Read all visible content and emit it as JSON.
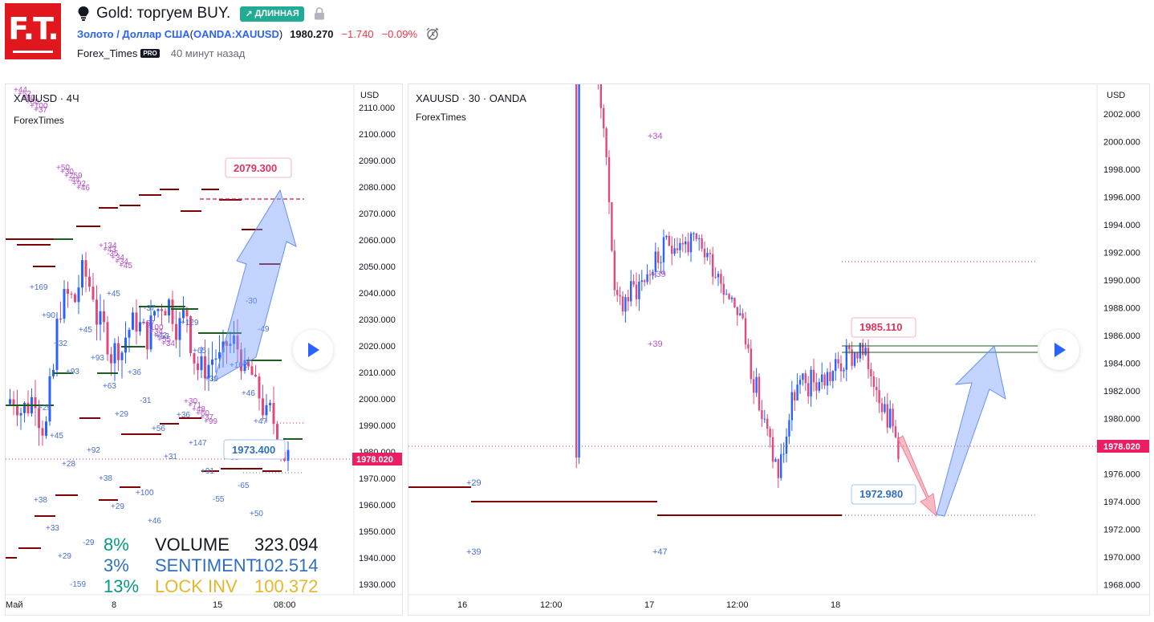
{
  "header": {
    "logo_text": "F.T.",
    "title": "Gold: торгуем BUY.",
    "direction_badge": "ДЛИННАЯ",
    "symbol_name": "Золото / Доллар США",
    "symbol_paren_open": " (",
    "symbol_code": "OANDA:XAUUSD",
    "symbol_paren_close": ")",
    "price": "1980.270",
    "change": "−1.740",
    "change_pct": "−0.09%",
    "author": "Forex_Times",
    "author_badge": "PRO",
    "time_ago": "40 минут назад"
  },
  "colors": {
    "up": "#2962ff",
    "down": "#e04a7f",
    "brand": "#e1171e",
    "badge_green": "#22ab94",
    "price_tag": "#e91e63",
    "level_dark": "#7f0000",
    "level_green": "#1b5e20",
    "plus_label": "#b450c8",
    "blue_label": "#4a6fd6",
    "volume_green": "#089981",
    "sentiment_blue": "#2f6fc0",
    "lock_yellow": "#e3b82c"
  },
  "left_chart": {
    "title": "XAUUSD · 4Ч",
    "subtitle": "ForexTimes",
    "currency": "USD",
    "price_ticks": [
      "2110.000",
      "2100.000",
      "2090.000",
      "2080.000",
      "2070.000",
      "2060.000",
      "2050.000",
      "2040.000",
      "2030.000",
      "2020.000",
      "2010.000",
      "2000.000",
      "1990.000",
      "1980.000",
      "1970.000",
      "1960.000",
      "1950.000",
      "1940.000",
      "1930.000"
    ],
    "time_ticks": [
      "Май",
      "8",
      "15",
      "08:00"
    ],
    "last_price": "1978.020",
    "target_label": "2079.300",
    "entry_label": "1973.400",
    "stats": [
      {
        "pct": "8%",
        "name": "VOLUME",
        "value": "323.094"
      },
      {
        "pct": "3%",
        "name": "SENTIMENT",
        "value": "102.514"
      },
      {
        "pct": "13%",
        "name": "LOCK INV",
        "value": "100.372"
      }
    ],
    "marks_pink": [
      "+44",
      "+50",
      "+134",
      "+57",
      "+30",
      "+52",
      "+30",
      "+43",
      "+100",
      "+71",
      "+60",
      "+259",
      "-35",
      "+34",
      "+48",
      "+80",
      "-44",
      "+34",
      "+42",
      "+60",
      "+100",
      "+92",
      "+34",
      "+55",
      "+37",
      "+37",
      "+46",
      "+45",
      "+34",
      "+99"
    ],
    "marks_blue": [
      "+169",
      "+45",
      "+36",
      "+36",
      "+35",
      "+38",
      "-29",
      "+41",
      "+129",
      "+102",
      "+29",
      "+92",
      "+100",
      "+31",
      "+29",
      "+90",
      "+93",
      "-31",
      "+147",
      "-65",
      "+33",
      "+131",
      "-37",
      "+65",
      "+46",
      "+45",
      "+38",
      "+46",
      "+91",
      "-30",
      "+32",
      "+63",
      "+56",
      "+91",
      "+50",
      "+29",
      "+45",
      "+53",
      "+39",
      "+47",
      "+28",
      "+29",
      "+50",
      "+51",
      "-49",
      "+93",
      "+29",
      "+31",
      "-55",
      "+29",
      "-159"
    ]
  },
  "right_chart": {
    "title": "XAUUSD · 30 · OANDA",
    "subtitle": "ForexTimes",
    "currency": "USD",
    "price_ticks": [
      "2002.000",
      "2000.000",
      "1998.000",
      "1996.000",
      "1994.000",
      "1992.000",
      "1990.000",
      "1988.000",
      "1986.000",
      "1984.000",
      "1982.000",
      "1980.000",
      "1978.000",
      "1976.000",
      "1974.000",
      "1972.000",
      "1970.000",
      "1968.000"
    ],
    "time_ticks": [
      "16",
      "12:00",
      "17",
      "12:00",
      "18"
    ],
    "last_price": "1978.020",
    "high_label": "1985.110",
    "low_label": "1972.980",
    "marks_pink": [
      "+34",
      "+39",
      "+39"
    ],
    "marks_blue": [
      "+29",
      "+39",
      "+47"
    ]
  }
}
